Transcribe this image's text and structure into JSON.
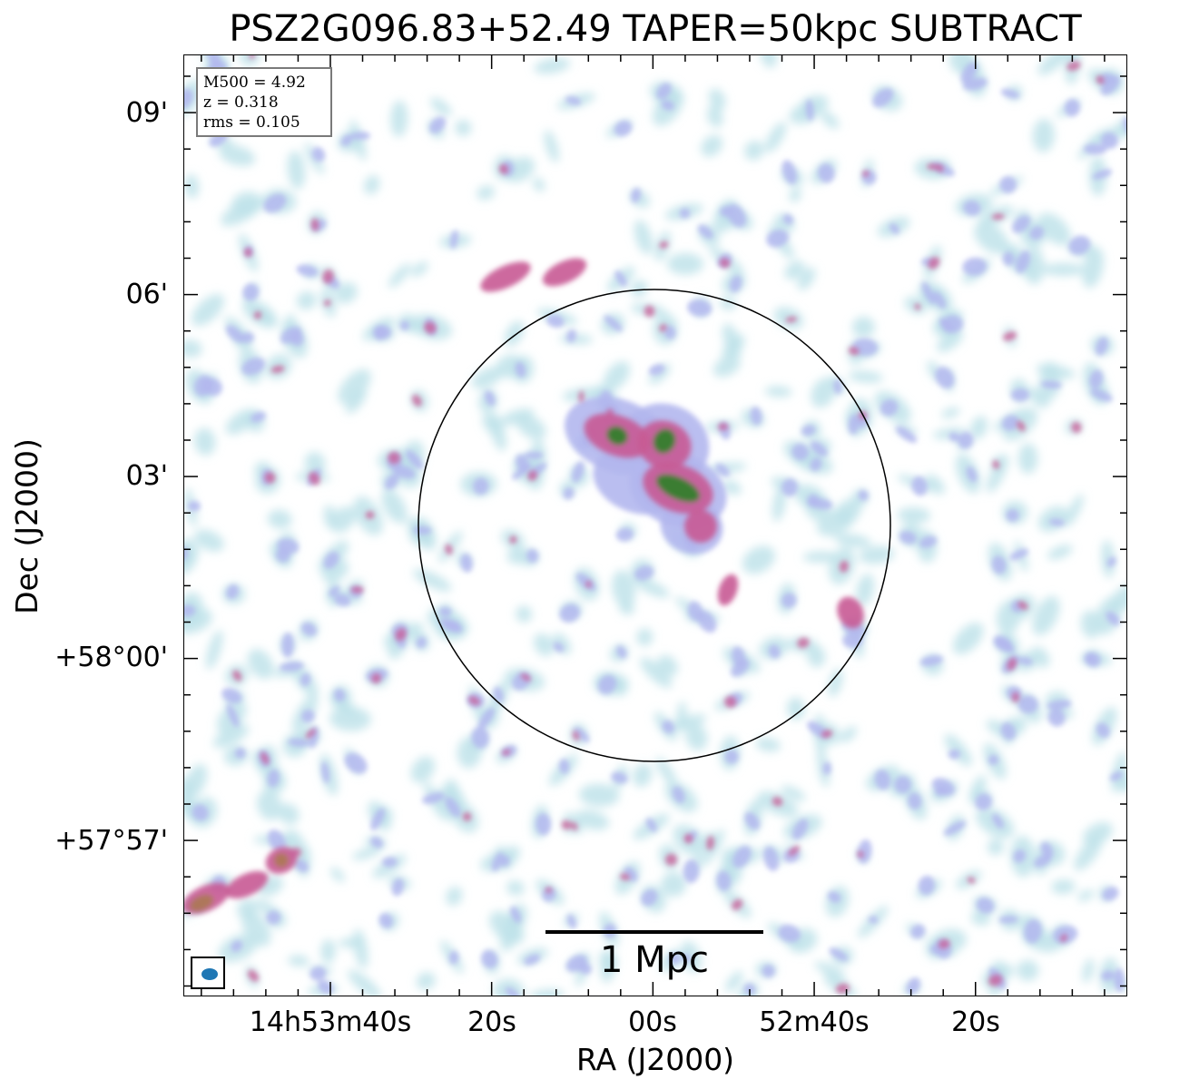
{
  "title": "PSZ2G096.83+52.49 TAPER=50kpc SUBTRACT",
  "info": {
    "m500": "M500 = 4.92",
    "z": "z = 0.318",
    "rms": "rms = 0.105"
  },
  "axes": {
    "xlabel": "RA (J2000)",
    "ylabel": "Dec (J2000)",
    "xticks": [
      "14h53m40s",
      "20s",
      "00s",
      "52m40s",
      "20s"
    ],
    "yticks": [
      "09'",
      "06'",
      "03'",
      "+58°00'",
      "+57°57'"
    ]
  },
  "scalebar": {
    "label": "1 Mpc"
  },
  "colors": {
    "low": "#bfe3ea",
    "mid": "#b3b7ee",
    "high": "#c85a93",
    "peak": "#357e2c",
    "circle": "#000000",
    "beam": "#1f77b4"
  }
}
